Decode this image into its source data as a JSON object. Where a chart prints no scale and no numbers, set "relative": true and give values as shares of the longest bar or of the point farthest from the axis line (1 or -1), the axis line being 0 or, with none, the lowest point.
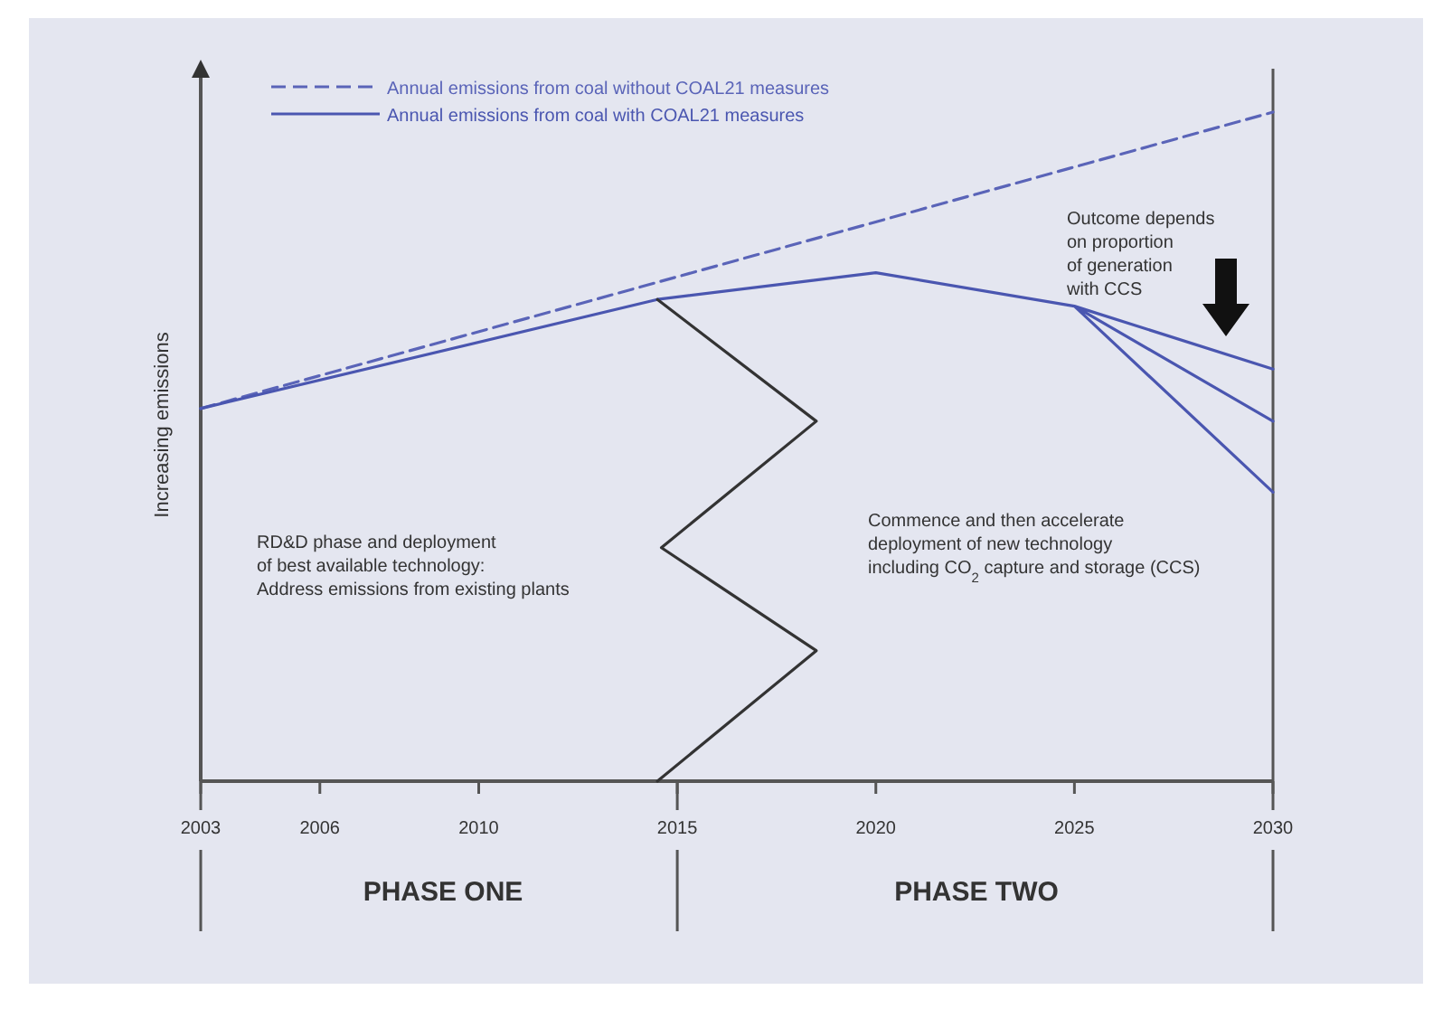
{
  "chart_data": {
    "type": "line",
    "relative": true,
    "ylabel": "Increasing emissions",
    "xlim": [
      2003,
      2030
    ],
    "xticks": [
      2003,
      2006,
      2010,
      2015,
      2020,
      2025,
      2030
    ],
    "legend": "top left",
    "marker": "none",
    "grid": false,
    "series": [
      {
        "name": "Annual emissions from coal without COAL21 measures",
        "color": "#5a64b8",
        "line_style": "dashed",
        "x": [
          2003,
          2030
        ],
        "values": [
          0.557,
          1
        ]
      },
      {
        "name": "Annual emissions from coal with COAL21 measures",
        "color": "#4a56b0",
        "line_style": "solid",
        "x": [
          2003,
          2014.5,
          2020,
          2025,
          2030,
          2025,
          2030,
          2025,
          2030
        ],
        "values": [
          0.557,
          0.72,
          0.76,
          0.71,
          0.616,
          0.71,
          0.538,
          0.71,
          0.432
        ]
      },
      {
        "color": "#333333",
        "line_style": "solid",
        "x": [
          2014.5,
          2018.5,
          2014.6,
          2018.5,
          2014.5
        ],
        "values": [
          0,
          0.195,
          0.349,
          0.538,
          0.72
        ]
      }
    ],
    "annotations": [
      "RD&D phase and deployment\nof best available technology:\nAddress emissions from existing plants",
      "Commence and then accelerate\ndeployment of  new technology\nincluding CO$_{2}$ capture and storage (CCS)",
      "Outcome depends\non proportion\nof generation\nwith CCS",
      "PHASE ONE",
      "PHASE TWO"
    ]
  }
}
